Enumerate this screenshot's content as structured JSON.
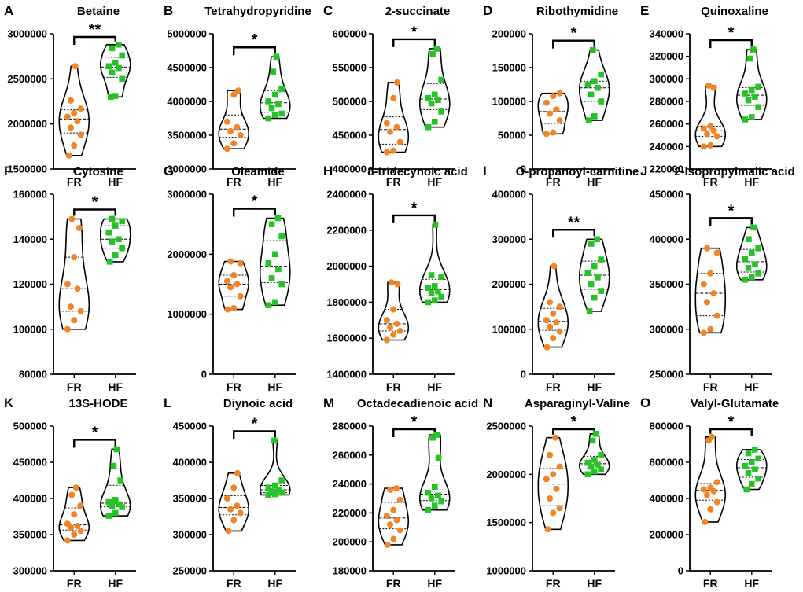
{
  "figure": {
    "groups": [
      "FR",
      "HF"
    ],
    "colors": {
      "FR": "#f08426",
      "HF": "#27c227",
      "violin": "#000000"
    }
  },
  "chart_data": [
    {
      "panel": "A",
      "title": "Betaine",
      "type": "violin",
      "ylim": [
        1500000,
        3000000
      ],
      "yticks": [
        1500000,
        2000000,
        2500000,
        3000000
      ],
      "ytick_labels": [
        "1500000",
        "2000000",
        "2500000",
        "3000000"
      ],
      "categories": [
        "FR",
        "HF"
      ],
      "series": [
        {
          "name": "FR",
          "values": [
            1650000,
            1760000,
            1880000,
            1960000,
            2030000,
            2080000,
            2120000,
            2170000,
            2260000,
            2640000
          ]
        },
        {
          "name": "HF",
          "values": [
            2300000,
            2310000,
            2500000,
            2570000,
            2620000,
            2640000,
            2680000,
            2760000,
            2840000,
            2880000
          ]
        }
      ],
      "significance": "**"
    },
    {
      "panel": "B",
      "title": "Tetrahydropyridine",
      "type": "violin",
      "ylim": [
        3000000,
        5000000
      ],
      "yticks": [
        3000000,
        3500000,
        4000000,
        4500000,
        5000000
      ],
      "ytick_labels": [
        "3000000",
        "3500000",
        "4000000",
        "4500000",
        "5000000"
      ],
      "categories": [
        "FR",
        "HF"
      ],
      "series": [
        {
          "name": "FR",
          "values": [
            3300000,
            3380000,
            3500000,
            3560000,
            3620000,
            3700000,
            4100000,
            4160000
          ]
        },
        {
          "name": "HF",
          "values": [
            3750000,
            3800000,
            3820000,
            3900000,
            3960000,
            4000000,
            4100000,
            4180000,
            4440000,
            4660000
          ]
        }
      ],
      "significance": "*"
    },
    {
      "panel": "C",
      "title": "2-succinate",
      "type": "violin",
      "ylim": [
        400000,
        600000
      ],
      "yticks": [
        400000,
        450000,
        500000,
        550000,
        600000
      ],
      "ytick_labels": [
        "400000",
        "450000",
        "500000",
        "550000",
        "600000"
      ],
      "categories": [
        "FR",
        "HF"
      ],
      "series": [
        {
          "name": "FR",
          "values": [
            425000,
            427000,
            440000,
            455000,
            462000,
            468000,
            505000,
            528000
          ]
        },
        {
          "name": "HF",
          "values": [
            462000,
            470000,
            485000,
            497000,
            502000,
            505000,
            510000,
            532000,
            570000,
            578000
          ]
        }
      ],
      "significance": "*"
    },
    {
      "panel": "D",
      "title": "Ribothymidine",
      "type": "violin",
      "ylim": [
        0,
        200000
      ],
      "yticks": [
        0,
        50000,
        100000,
        150000,
        200000
      ],
      "ytick_labels": [
        "0",
        "50000",
        "100000",
        "150000",
        "200000"
      ],
      "categories": [
        "FR",
        "HF"
      ],
      "series": [
        {
          "name": "FR",
          "values": [
            52000,
            54000,
            72000,
            82000,
            88000,
            98000,
            108000,
            112000
          ]
        },
        {
          "name": "HF",
          "values": [
            72000,
            78000,
            100000,
            110000,
            120000,
            125000,
            130000,
            140000,
            176000
          ]
        }
      ],
      "significance": "*"
    },
    {
      "panel": "E",
      "title": "Quinoxaline",
      "type": "violin",
      "ylim": [
        220000,
        340000
      ],
      "yticks": [
        220000,
        240000,
        260000,
        280000,
        300000,
        320000,
        340000
      ],
      "ytick_labels": [
        "220000",
        "240000",
        "260000",
        "280000",
        "300000",
        "320000",
        "340000"
      ],
      "categories": [
        "FR",
        "HF"
      ],
      "series": [
        {
          "name": "FR",
          "values": [
            240000,
            241000,
            249000,
            251000,
            254000,
            256000,
            258000,
            292000,
            294000
          ]
        },
        {
          "name": "HF",
          "values": [
            264000,
            266000,
            275000,
            281000,
            284000,
            287000,
            290000,
            293000,
            318000,
            326000
          ]
        }
      ],
      "significance": "*"
    },
    {
      "panel": "F",
      "title": "Cytosine",
      "type": "violin",
      "ylim": [
        80000,
        160000
      ],
      "yticks": [
        80000,
        100000,
        120000,
        140000,
        160000
      ],
      "ytick_labels": [
        "80000",
        "100000",
        "120000",
        "140000",
        "160000"
      ],
      "categories": [
        "FR",
        "HF"
      ],
      "series": [
        {
          "name": "FR",
          "values": [
            100000,
            104000,
            108000,
            110000,
            118000,
            120000,
            132000,
            145000,
            149000
          ]
        },
        {
          "name": "HF",
          "values": [
            130000,
            133000,
            136000,
            139000,
            140000,
            143000,
            146000,
            148000,
            149000
          ]
        }
      ],
      "significance": "*"
    },
    {
      "panel": "G",
      "title": "Oleamide",
      "type": "violin",
      "ylim": [
        0,
        3000000
      ],
      "yticks": [
        0,
        1000000,
        2000000,
        3000000
      ],
      "ytick_labels": [
        "0",
        "1000000",
        "2000000",
        "3000000"
      ],
      "categories": [
        "FR",
        "HF"
      ],
      "series": [
        {
          "name": "FR",
          "values": [
            1080000,
            1100000,
            1300000,
            1450000,
            1500000,
            1550000,
            1650000,
            1850000,
            1880000
          ]
        },
        {
          "name": "HF",
          "values": [
            1150000,
            1200000,
            1500000,
            1600000,
            1750000,
            1850000,
            2000000,
            2300000,
            2500000,
            2600000
          ]
        }
      ],
      "significance": "*"
    },
    {
      "panel": "H",
      "title": "8-tridecynoic acid",
      "type": "violin",
      "ylim": [
        1400000,
        2400000
      ],
      "yticks": [
        1400000,
        1600000,
        1800000,
        2000000,
        2200000,
        2400000
      ],
      "ytick_labels": [
        "1400000",
        "1600000",
        "1800000",
        "2000000",
        "2200000",
        "2400000"
      ],
      "categories": [
        "FR",
        "HF"
      ],
      "series": [
        {
          "name": "FR",
          "values": [
            1590000,
            1620000,
            1640000,
            1660000,
            1680000,
            1700000,
            1760000,
            1900000,
            1910000
          ]
        },
        {
          "name": "HF",
          "values": [
            1800000,
            1810000,
            1830000,
            1850000,
            1860000,
            1880000,
            1890000,
            1940000,
            1950000,
            2230000
          ]
        }
      ],
      "significance": "*"
    },
    {
      "panel": "I",
      "title": "O-propanoyl-carnitine",
      "type": "violin",
      "ylim": [
        0,
        400000
      ],
      "yticks": [
        0,
        100000,
        200000,
        300000,
        400000
      ],
      "ytick_labels": [
        "0",
        "100000",
        "200000",
        "300000",
        "400000"
      ],
      "categories": [
        "FR",
        "HF"
      ],
      "series": [
        {
          "name": "FR",
          "values": [
            60000,
            80000,
            95000,
            105000,
            115000,
            120000,
            135000,
            150000,
            160000,
            240000
          ]
        },
        {
          "name": "HF",
          "values": [
            140000,
            170000,
            185000,
            200000,
            215000,
            225000,
            240000,
            255000,
            290000,
            300000
          ]
        }
      ],
      "significance": "**"
    },
    {
      "panel": "J",
      "title": "2-Isopropylmalic acid",
      "type": "violin",
      "ylim": [
        250000,
        450000
      ],
      "yticks": [
        250000,
        300000,
        350000,
        400000,
        450000
      ],
      "ytick_labels": [
        "250000",
        "300000",
        "350000",
        "400000",
        "450000"
      ],
      "categories": [
        "FR",
        "HF"
      ],
      "series": [
        {
          "name": "FR",
          "values": [
            296000,
            300000,
            315000,
            330000,
            340000,
            350000,
            362000,
            385000,
            390000
          ]
        },
        {
          "name": "HF",
          "values": [
            355000,
            358000,
            362000,
            368000,
            372000,
            378000,
            385000,
            390000,
            400000,
            413000
          ]
        }
      ],
      "significance": "*"
    },
    {
      "panel": "K",
      "title": "13S-HODE",
      "type": "violin",
      "ylim": [
        300000,
        500000
      ],
      "yticks": [
        300000,
        350000,
        400000,
        450000,
        500000
      ],
      "ytick_labels": [
        "300000",
        "350000",
        "400000",
        "450000",
        "500000"
      ],
      "categories": [
        "FR",
        "HF"
      ],
      "series": [
        {
          "name": "FR",
          "values": [
            342000,
            350000,
            355000,
            360000,
            362000,
            365000,
            378000,
            390000,
            405000,
            415000
          ]
        },
        {
          "name": "HF",
          "values": [
            376000,
            380000,
            388000,
            390000,
            392000,
            395000,
            398000,
            425000,
            445000,
            468000
          ]
        }
      ],
      "significance": "*"
    },
    {
      "panel": "L",
      "title": "Diynoic acid",
      "type": "violin",
      "ylim": [
        250000,
        450000
      ],
      "yticks": [
        250000,
        300000,
        350000,
        400000,
        450000
      ],
      "ytick_labels": [
        "250000",
        "300000",
        "350000",
        "400000",
        "450000"
      ],
      "categories": [
        "FR",
        "HF"
      ],
      "series": [
        {
          "name": "FR",
          "values": [
            305000,
            320000,
            330000,
            335000,
            340000,
            350000,
            365000,
            385000
          ]
        },
        {
          "name": "HF",
          "values": [
            355000,
            356000,
            358000,
            360000,
            362000,
            365000,
            368000,
            375000,
            430000
          ]
        }
      ],
      "significance": "*"
    },
    {
      "panel": "M",
      "title": "Octadecadienoic acid",
      "type": "violin",
      "ylim": [
        180000,
        280000
      ],
      "yticks": [
        180000,
        200000,
        220000,
        240000,
        260000,
        280000
      ],
      "ytick_labels": [
        "180000",
        "200000",
        "220000",
        "240000",
        "260000",
        "280000"
      ],
      "categories": [
        "FR",
        "HF"
      ],
      "series": [
        {
          "name": "FR",
          "values": [
            198000,
            202000,
            208000,
            212000,
            215000,
            218000,
            222000,
            229000,
            236000,
            237000
          ]
        },
        {
          "name": "HF",
          "values": [
            222000,
            225000,
            228000,
            230000,
            232000,
            234000,
            238000,
            258000,
            272000,
            274000
          ]
        }
      ],
      "significance": "*"
    },
    {
      "panel": "N",
      "title": "Asparaginyl-Valine",
      "type": "violin",
      "ylim": [
        1000000,
        2500000
      ],
      "yticks": [
        1000000,
        1500000,
        2000000,
        2500000
      ],
      "ytick_labels": [
        "1000000",
        "1500000",
        "2000000",
        "2500000"
      ],
      "categories": [
        "FR",
        "HF"
      ],
      "series": [
        {
          "name": "FR",
          "values": [
            1430000,
            1600000,
            1650000,
            1750000,
            1850000,
            1950000,
            2000000,
            2080000,
            2200000,
            2380000
          ]
        },
        {
          "name": "HF",
          "values": [
            2000000,
            2030000,
            2050000,
            2080000,
            2100000,
            2120000,
            2150000,
            2200000,
            2350000,
            2420000
          ]
        }
      ],
      "significance": "*"
    },
    {
      "panel": "O",
      "title": "Valyl-Glutamate",
      "type": "violin",
      "ylim": [
        0,
        800000
      ],
      "yticks": [
        0,
        200000,
        400000,
        600000,
        800000
      ],
      "ytick_labels": [
        "0",
        "200000",
        "400000",
        "600000",
        "800000"
      ],
      "categories": [
        "FR",
        "HF"
      ],
      "series": [
        {
          "name": "FR",
          "values": [
            270000,
            340000,
            380000,
            420000,
            440000,
            450000,
            460000,
            490000,
            720000,
            740000
          ]
        },
        {
          "name": "HF",
          "values": [
            450000,
            480000,
            510000,
            540000,
            560000,
            580000,
            600000,
            620000,
            650000,
            670000
          ]
        }
      ],
      "significance": "*"
    }
  ]
}
